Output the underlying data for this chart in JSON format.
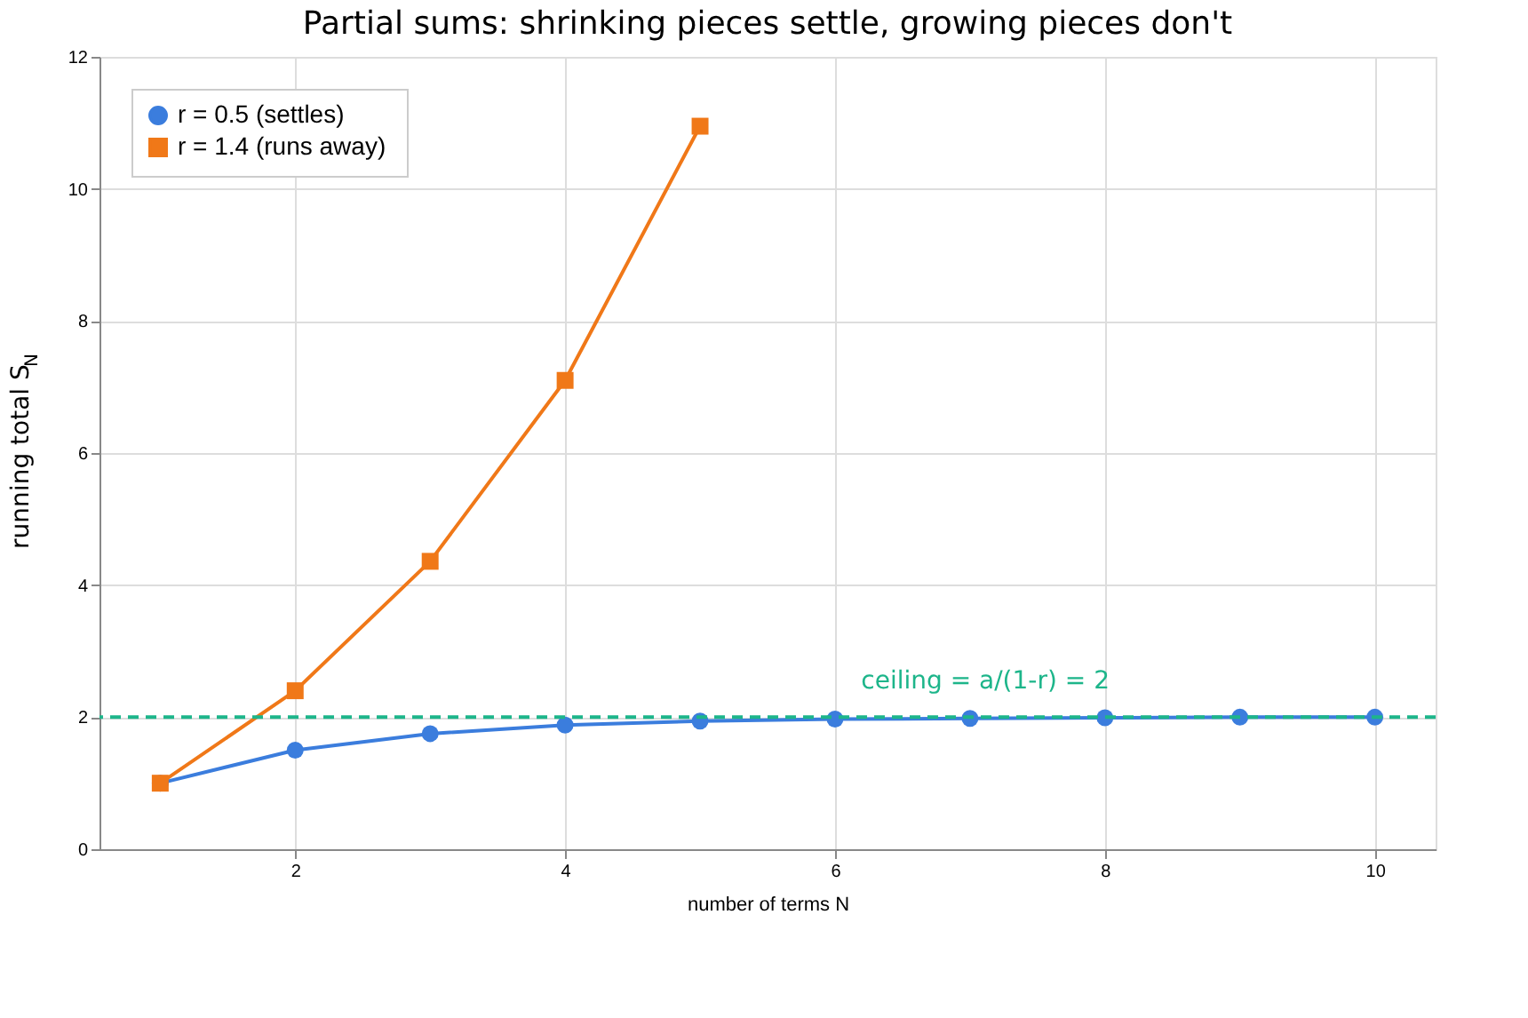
{
  "chart_data": {
    "type": "line",
    "title": "Partial sums: shrinking pieces settle, growing pieces don't",
    "xlabel": "number of terms  N",
    "ylabel": "running total  S$_{N}$",
    "x": [
      1,
      2,
      3,
      4,
      5,
      6,
      7,
      8,
      9,
      10
    ],
    "series": [
      {
        "name": "r = 0.5  (settles)",
        "color": "#3b7ddd",
        "marker": "circle",
        "values": [
          1,
          1.5,
          1.75,
          1.88,
          1.94,
          1.97,
          1.98,
          1.99,
          2.0,
          2.0
        ]
      },
      {
        "name": "r = 1.4  (runs away)",
        "color": "#f07818",
        "marker": "square",
        "values": [
          1,
          2.4,
          4.36,
          7.1,
          10.95,
          null,
          null,
          null,
          null,
          null
        ]
      }
    ],
    "xlim": [
      0.55,
      10.45
    ],
    "ylim": [
      0,
      12
    ],
    "xticks": [
      2,
      4,
      6,
      8,
      10
    ],
    "yticks": [
      0,
      2,
      4,
      6,
      8,
      10,
      12
    ],
    "grid": true,
    "legend": "top left",
    "line_style": "solid",
    "ref_lines": [
      {
        "axis": "y",
        "value": 2,
        "label": "ceiling = a/(1-r) = 2",
        "color": "#1db58a",
        "line_style": "dashed"
      }
    ]
  }
}
